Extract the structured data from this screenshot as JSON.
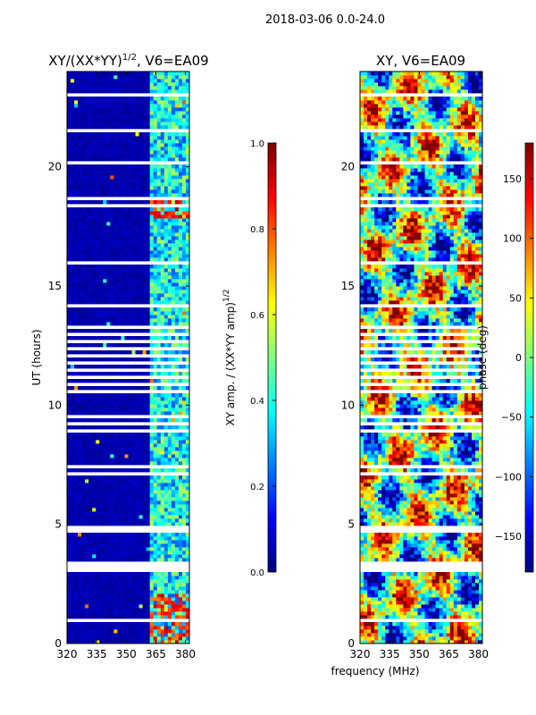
{
  "figure": {
    "suptitle": "2018-03-06 0.0-24.0",
    "shared_xlabel": "frequency (MHz)"
  },
  "chart_data": [
    {
      "type": "heatmap",
      "title_prefix": "XY/(XX*YY)",
      "title_exponent": "1/2",
      "title_suffix": ", V6=EA09",
      "xlabel": "frequency (MHz)",
      "ylabel": "UT (hours)",
      "xlim": [
        320,
        382
      ],
      "ylim": [
        0,
        24
      ],
      "x_ticks": [
        320,
        335,
        350,
        365,
        380
      ],
      "y_ticks": [
        0,
        5,
        10,
        15,
        20
      ],
      "colorbar": {
        "label_prefix": "XY amp. / (XX*YY amp)",
        "label_exponent": "1/2",
        "range": [
          0.0,
          1.0
        ],
        "ticks": [
          "0.0",
          "0.2",
          "0.4",
          "0.6",
          "0.8",
          "1.0"
        ],
        "colormap": "jet"
      }
    },
    {
      "type": "heatmap",
      "title": "XY, V6=EA09",
      "xlabel": "frequency (MHz)",
      "ylabel": "",
      "xlim": [
        320,
        382
      ],
      "ylim": [
        0,
        24
      ],
      "x_ticks": [
        320,
        335,
        350,
        365,
        380
      ],
      "y_ticks": [
        0,
        5,
        10,
        15,
        20
      ],
      "colorbar": {
        "label": "phase (deg)",
        "range": [
          -180,
          180
        ],
        "ticks": [
          "−150",
          "−100",
          "−50",
          "0",
          "50",
          "100",
          "150"
        ],
        "colormap": "jet"
      }
    }
  ]
}
